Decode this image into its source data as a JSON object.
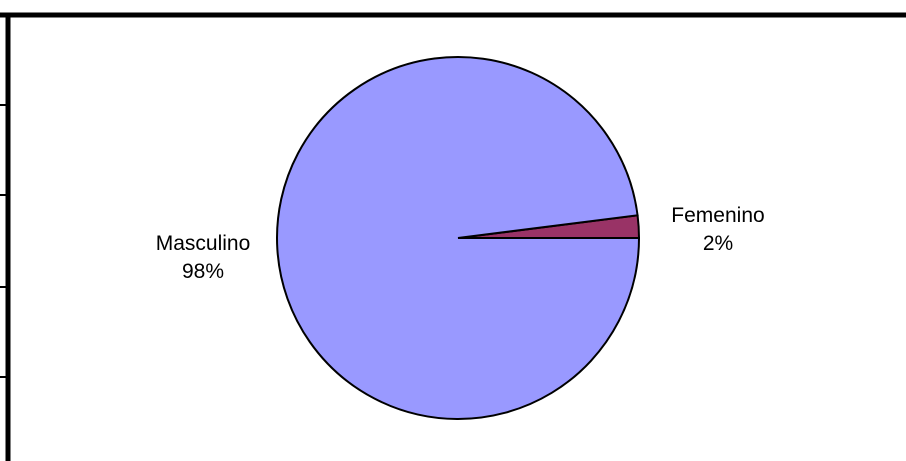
{
  "chart_data": {
    "type": "pie",
    "title": "",
    "legend": "none",
    "start_angle_deg": 0,
    "direction": "counterclockwise",
    "slices": [
      {
        "label": "Femenino",
        "value": 2,
        "value_label": "2%",
        "color": "#993366"
      },
      {
        "label": "Masculino",
        "value": 98,
        "value_label": "98%",
        "color": "#9999FF"
      }
    ]
  },
  "colors": {
    "outline": "#000000",
    "background": "#FFFFFF"
  }
}
